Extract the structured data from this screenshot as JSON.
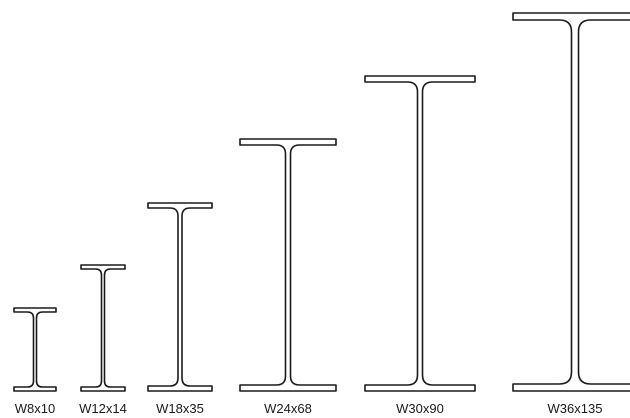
{
  "diagram": {
    "colors": {
      "stroke": "#1a1a1a",
      "fill": "#ffffff",
      "label": "#1a1a1a"
    },
    "sections": [
      {
        "id": "w8x10",
        "label": "W8x10"
      },
      {
        "id": "w12x14",
        "label": "W12x14"
      },
      {
        "id": "w18x35",
        "label": "W18x35"
      },
      {
        "id": "w24x68",
        "label": "W24x68"
      },
      {
        "id": "w30x90",
        "label": "W30x90"
      },
      {
        "id": "w36x135",
        "label": "W36x135"
      }
    ]
  }
}
